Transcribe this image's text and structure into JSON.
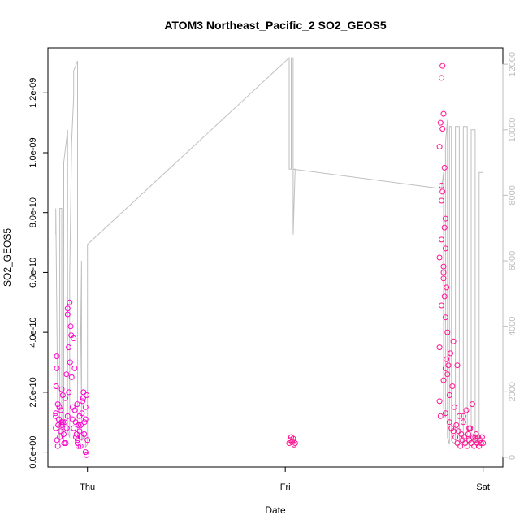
{
  "chart_data": {
    "type": "scatter",
    "title": "ATOM3 Northeast_Pacific_2 SO2_GEOS5",
    "xlabel": "Date",
    "ylabel": "SO2_GEOS5",
    "x_ticks": [
      {
        "value": 1,
        "label": "Thu"
      },
      {
        "value": 2,
        "label": "Fri"
      },
      {
        "value": 3,
        "label": "Sat"
      }
    ],
    "xlim": [
      0.8,
      3.1
    ],
    "y_ticks": [
      {
        "value": 0,
        "label": "0.0e+00"
      },
      {
        "value": 2e-10,
        "label": "2.0e-10"
      },
      {
        "value": 4e-10,
        "label": "4.0e-10"
      },
      {
        "value": 6e-10,
        "label": "6.0e-10"
      },
      {
        "value": 8e-10,
        "label": "8.0e-10"
      },
      {
        "value": 1e-09,
        "label": "1.0e-09"
      },
      {
        "value": 1.2e-09,
        "label": "1.2e-09"
      }
    ],
    "ylim": [
      -5e-11,
      1.35e-09
    ],
    "y2_ticks": [
      {
        "value": 0,
        "label": "0"
      },
      {
        "value": 2000,
        "label": "2000"
      },
      {
        "value": 4000,
        "label": "4000"
      },
      {
        "value": 6000,
        "label": "6000"
      },
      {
        "value": 8000,
        "label": "8000"
      },
      {
        "value": 10000,
        "label": "10000"
      },
      {
        "value": 12000,
        "label": "12000"
      }
    ],
    "y2lim": [
      -300,
      12500
    ],
    "colors": {
      "points_primary": "#ff1493",
      "points_secondary": "#ff00cc",
      "altitude_line": "#bfbfbf",
      "right_axis": "#bdbdbd"
    },
    "series": [
      {
        "role": "SO2_GEOS5 points",
        "x": [
          0.84,
          0.84,
          0.845,
          0.85,
          0.85,
          0.855,
          0.86,
          0.865,
          0.87,
          0.875,
          0.88,
          0.885,
          0.89,
          0.895,
          0.9,
          0.905,
          0.91,
          0.915,
          0.92,
          0.925,
          0.93,
          0.935,
          0.94,
          0.945,
          0.95,
          0.955,
          0.96,
          0.965,
          0.97,
          0.975,
          0.98,
          0.985,
          0.99,
          0.995,
          0.84,
          0.842,
          0.846,
          0.852,
          0.858,
          0.864,
          0.87,
          0.876,
          0.882,
          0.888,
          0.894,
          0.9,
          0.906,
          0.912,
          0.918,
          0.924,
          0.93,
          0.936,
          0.942,
          0.948,
          0.954,
          0.96,
          0.966,
          0.972,
          0.978,
          0.984,
          0.99,
          0.996,
          1.0,
          0.845,
          0.87,
          0.9,
          0.95,
          0.99,
          2.02,
          2.025,
          2.03,
          2.035,
          2.04,
          2.045,
          2.05,
          2.78,
          2.785,
          2.79,
          2.795,
          2.8,
          2.805,
          2.81,
          2.815,
          2.82,
          2.825,
          2.83,
          2.835,
          2.84,
          2.845,
          2.85,
          2.855,
          2.86,
          2.865,
          2.87,
          2.875,
          2.88,
          2.885,
          2.89,
          2.895,
          2.9,
          2.905,
          2.91,
          2.915,
          2.92,
          2.925,
          2.93,
          2.935,
          2.94,
          2.945,
          2.95,
          2.955,
          2.96,
          2.965,
          2.97,
          2.975,
          2.98,
          2.985,
          2.99,
          2.995,
          3.0,
          2.79,
          2.795,
          2.8,
          2.805,
          2.81,
          2.78,
          2.785,
          2.79,
          2.795,
          2.8,
          2.805,
          2.81,
          2.815,
          2.82,
          2.83,
          2.85,
          2.87,
          2.9,
          2.93,
          2.96,
          2.99,
          2.78,
          2.79,
          2.8,
          2.81,
          2.78,
          2.79,
          2.8,
          2.81
        ],
        "y": [
          8e-11,
          1.2e-10,
          3.2e-10,
          1.6e-10,
          2e-11,
          1.1e-10,
          5e-11,
          1.4e-10,
          9e-11,
          1.9e-10,
          6e-11,
          1e-10,
          3e-11,
          8e-11,
          1.2e-10,
          3.5e-10,
          5e-10,
          4.2e-10,
          2.5e-10,
          1.5e-10,
          3.8e-10,
          2.8e-10,
          1e-10,
          6e-11,
          4e-11,
          9e-11,
          1.2e-10,
          2e-11,
          5e-11,
          1.7e-10,
          2e-10,
          1e-10,
          0.0,
          -1e-11,
          1.3e-10,
          2.2e-10,
          4e-11,
          9e-11,
          1.5e-10,
          7e-11,
          2.1e-10,
          1e-10,
          3e-11,
          1.8e-10,
          2.6e-10,
          4.6e-10,
          2e-10,
          3e-10,
          3.9e-10,
          1.1e-10,
          8e-11,
          1.4e-10,
          5e-11,
          1.6e-10,
          2e-11,
          7e-11,
          9e-11,
          1.3e-10,
          1.8e-10,
          6e-11,
          1.5e-10,
          1.9e-10,
          4e-11,
          2.8e-10,
          1e-10,
          4.8e-10,
          3e-11,
          1.1e-10,
          3e-11,
          4e-11,
          5e-11,
          3.5e-11,
          4.5e-11,
          2.5e-11,
          3e-11,
          1.7e-10,
          1.2e-10,
          8.9e-10,
          1.08e-09,
          6e-10,
          9.5e-10,
          7.8e-10,
          5.5e-10,
          4e-10,
          2.9e-10,
          1e-10,
          3.3e-10,
          8e-11,
          2.2e-10,
          3.7e-10,
          1.5e-10,
          5e-11,
          9e-11,
          3e-11,
          7e-11,
          1.2e-10,
          2e-11,
          6e-11,
          4e-11,
          1e-10,
          5e-11,
          3e-11,
          1.4e-10,
          2e-11,
          6e-11,
          4e-11,
          8e-11,
          3e-11,
          1.6e-10,
          5e-11,
          2e-11,
          4e-11,
          6e-11,
          3e-11,
          5e-11,
          2e-11,
          4e-11,
          3e-11,
          5e-11,
          3e-11,
          1.25e-09,
          1.29e-09,
          1.13e-09,
          7.5e-10,
          6.8e-10,
          1.02e-09,
          1.1e-09,
          8.4e-10,
          8.7e-10,
          6.2e-10,
          5.2e-10,
          4.5e-10,
          3.1e-10,
          2.6e-10,
          1.9e-10,
          7e-11,
          2.9e-10,
          1.2e-10,
          8e-11,
          5e-11,
          3e-11,
          3.5e-10,
          4.9e-10,
          2.4e-10,
          1.3e-10,
          6.5e-10,
          7.1e-10,
          5.8e-10,
          2.8e-10
        ]
      },
      {
        "role": "altitude line (right axis)",
        "x": [
          0.84,
          0.84,
          0.85,
          0.86,
          0.86,
          0.87,
          0.87,
          0.88,
          0.88,
          0.9,
          0.9,
          0.91,
          0.91,
          0.92,
          0.93,
          0.93,
          0.95,
          0.95,
          0.96,
          0.97,
          0.97,
          0.98,
          0.98,
          0.99,
          0.99,
          1.0,
          1.0,
          2.02,
          2.02,
          2.03,
          2.03,
          2.04,
          2.04,
          2.05,
          2.04,
          2.79,
          2.8,
          2.8,
          2.81,
          2.81,
          2.82,
          2.82,
          2.83,
          2.83,
          2.84,
          2.84,
          2.86,
          2.86,
          2.88,
          2.88,
          2.9,
          2.9,
          2.92,
          2.92,
          2.94,
          2.94,
          2.96,
          2.96,
          2.98,
          2.98,
          3.0
        ],
        "y": [
          6800,
          7600,
          1200,
          400,
          7600,
          7600,
          600,
          500,
          9000,
          10000,
          800,
          600,
          5500,
          9600,
          11000,
          11800,
          12100,
          700,
          500,
          6000,
          500,
          700,
          800,
          500,
          300,
          400,
          6500,
          12200,
          8800,
          8800,
          12200,
          12200,
          6800,
          8800,
          8800,
          8200,
          8700,
          1500,
          1200,
          9600,
          10300,
          600,
          400,
          10100,
          10100,
          500,
          400,
          10100,
          10100,
          400,
          500,
          10100,
          10100,
          400,
          600,
          10000,
          10000,
          500,
          400,
          8700,
          8700
        ]
      }
    ]
  }
}
